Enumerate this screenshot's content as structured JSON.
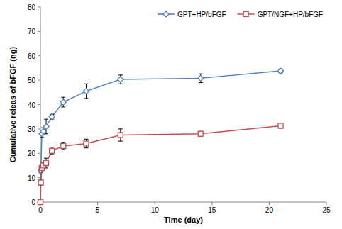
{
  "chart_data": {
    "type": "line",
    "x_label": "Time (day)",
    "y_label": "Cumulative releas of bFGF (ng)",
    "x": [
      0,
      0.04,
      0.125,
      0.25,
      0.5,
      1,
      2,
      4,
      7,
      14,
      21
    ],
    "series": [
      {
        "name": "GPT+HP/bFGF",
        "color": "#4f81bd",
        "marker": "diamond",
        "line_style": "solid",
        "values": [
          0,
          13,
          28,
          29,
          31,
          35,
          41,
          45.5,
          50.3,
          50.8,
          53.8
        ],
        "errors": [
          0,
          1,
          1.5,
          1.5,
          3,
          1,
          2,
          3,
          1.8,
          1.8,
          0.8
        ]
      },
      {
        "name": "GPT/NGF+HP/bFGF",
        "color": "#c0504d",
        "marker": "square",
        "line_style": "solid",
        "values": [
          0,
          8,
          14,
          15,
          16,
          21,
          23,
          24,
          27.5,
          28,
          31.3
        ],
        "errors": [
          0,
          1,
          1,
          1,
          2,
          1.5,
          1.5,
          1.8,
          2.5,
          1,
          1
        ]
      }
    ],
    "xlim": [
      0,
      25
    ],
    "xticks": [
      0,
      5,
      10,
      15,
      20,
      25
    ],
    "ylim": [
      0,
      80
    ],
    "yticks": [
      0,
      10,
      20,
      30,
      40,
      50,
      60,
      70,
      80
    ],
    "grid": false,
    "legend": "top"
  }
}
